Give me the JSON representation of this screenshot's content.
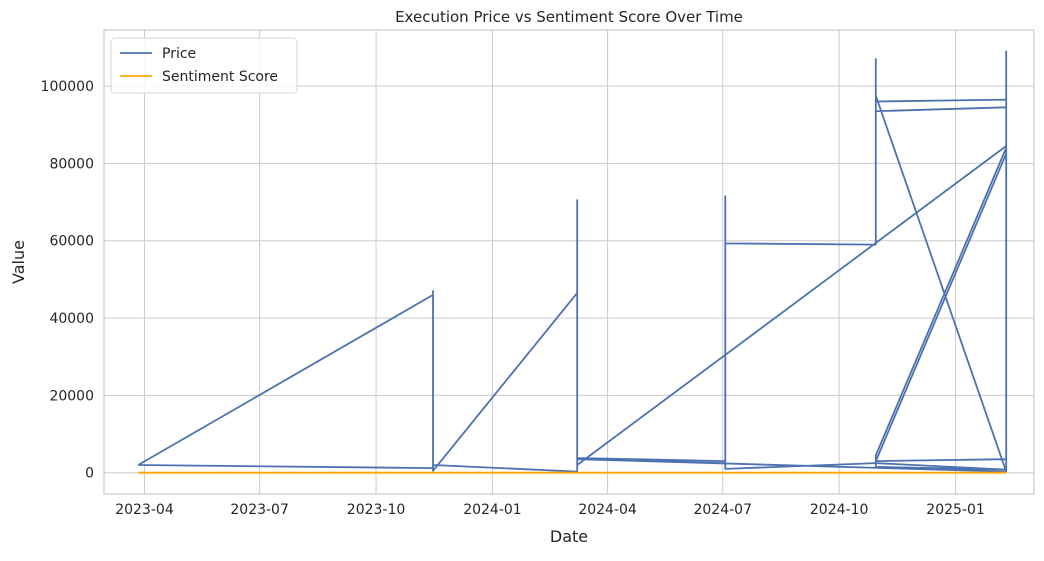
{
  "chart_data": {
    "type": "line",
    "title": "Execution Price vs Sentiment Score Over Time",
    "xlabel": "Date",
    "ylabel": "Value",
    "x_type": "date",
    "xlim": [
      "2023-02-28",
      "2025-03-04"
    ],
    "ylim": [
      -5500,
      114500
    ],
    "x_ticks": [
      {
        "date": "2023-04-01",
        "label": "2023-04"
      },
      {
        "date": "2023-07-01",
        "label": "2023-07"
      },
      {
        "date": "2023-10-01",
        "label": "2023-10"
      },
      {
        "date": "2024-01-01",
        "label": "2024-01"
      },
      {
        "date": "2024-04-01",
        "label": "2024-04"
      },
      {
        "date": "2024-07-01",
        "label": "2024-07"
      },
      {
        "date": "2024-10-01",
        "label": "2024-10"
      },
      {
        "date": "2025-01-01",
        "label": "2025-01"
      }
    ],
    "y_ticks": [
      0,
      20000,
      40000,
      60000,
      80000,
      100000
    ],
    "y_tick_labels": [
      "0",
      "20000",
      "40000",
      "60000",
      "80000",
      "100000"
    ],
    "grid": true,
    "legend_position": "top-left",
    "series": [
      {
        "name": "Price",
        "color": "#4c72b0",
        "points": [
          [
            "2023-03-27",
            2000
          ],
          [
            "2023-11-15",
            46000
          ],
          [
            "2023-11-15",
            47000
          ],
          [
            "2023-11-15",
            500
          ],
          [
            "2024-03-08",
            46500
          ],
          [
            "2024-03-08",
            70500
          ],
          [
            "2024-03-08",
            1000
          ],
          [
            "2024-03-08",
            2000
          ],
          [
            "2025-02-10",
            84500
          ],
          [
            "2025-02-10",
            300
          ],
          [
            "2024-03-08",
            3500
          ],
          [
            "2024-07-03",
            2500
          ],
          [
            "2024-07-03",
            71500
          ],
          [
            "2024-07-03",
            59300
          ],
          [
            "2024-10-30",
            59000
          ],
          [
            "2024-10-30",
            107000
          ],
          [
            "2024-10-30",
            96000
          ],
          [
            "2025-02-10",
            96500
          ],
          [
            "2025-02-10",
            94500
          ],
          [
            "2024-10-30",
            93500
          ],
          [
            "2024-10-30",
            97500
          ],
          [
            "2025-02-10",
            300
          ],
          [
            "2025-02-10",
            109000
          ],
          [
            "2025-02-10",
            82500
          ],
          [
            "2024-10-30",
            3000
          ],
          [
            "2024-10-30",
            4500
          ],
          [
            "2025-02-10",
            84000
          ],
          [
            "2025-02-10",
            3500
          ],
          [
            "2024-10-30",
            3000
          ],
          [
            "2024-10-30",
            1500
          ],
          [
            "2025-02-10",
            800
          ],
          [
            "2024-10-30",
            2500
          ],
          [
            "2024-07-03",
            1000
          ],
          [
            "2024-07-03",
            3000
          ],
          [
            "2024-03-08",
            3800
          ],
          [
            "2024-03-08",
            300
          ],
          [
            "2023-11-15",
            2000
          ],
          [
            "2023-11-15",
            1200
          ],
          [
            "2023-03-27",
            2000
          ]
        ]
      },
      {
        "name": "Sentiment Score",
        "color": "#ffa500",
        "points": [
          [
            "2023-03-27",
            0
          ],
          [
            "2025-02-10",
            0
          ]
        ]
      }
    ]
  }
}
